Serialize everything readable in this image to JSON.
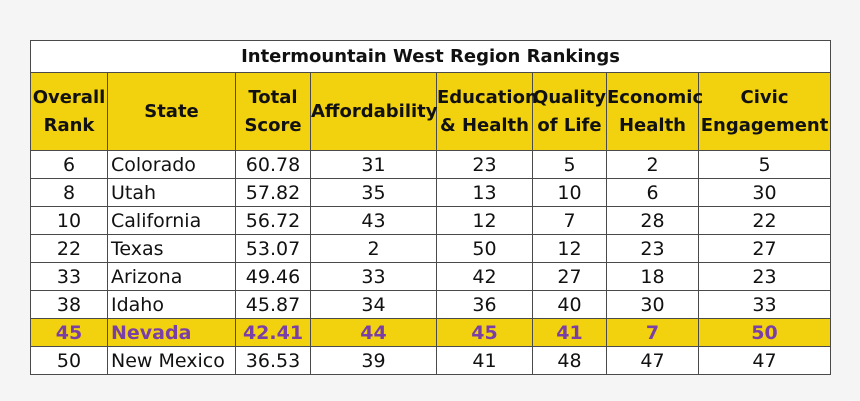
{
  "title": "Intermountain West Region Rankings",
  "headers": [
    [
      "Overall",
      "Rank"
    ],
    [
      "State"
    ],
    [
      "Total",
      "Score"
    ],
    [
      "Affordability"
    ],
    [
      "Education",
      "& Health"
    ],
    [
      "Quality",
      "of Life"
    ],
    [
      "Economic",
      "Health"
    ],
    [
      "Civic",
      "Engagement"
    ]
  ],
  "rows": [
    [
      "6",
      "Colorado",
      "60.78",
      "31",
      "23",
      "5",
      "2",
      "5"
    ],
    [
      "8",
      "Utah",
      "57.82",
      "35",
      "13",
      "10",
      "6",
      "30"
    ],
    [
      "10",
      "California",
      "56.72",
      "43",
      "12",
      "7",
      "28",
      "22"
    ],
    [
      "22",
      "Texas",
      "53.07",
      "2",
      "50",
      "12",
      "23",
      "27"
    ],
    [
      "33",
      "Arizona",
      "49.46",
      "33",
      "42",
      "27",
      "18",
      "23"
    ],
    [
      "38",
      "Idaho",
      "45.87",
      "34",
      "36",
      "40",
      "30",
      "33"
    ],
    [
      "45",
      "Nevada",
      "42.41",
      "44",
      "45",
      "41",
      "7",
      "50"
    ],
    [
      "50",
      "New Mexico",
      "36.53",
      "39",
      "41",
      "48",
      "47",
      "47"
    ]
  ],
  "highlight_row_state": "Nevada",
  "colors": {
    "header_bg": "#f2d20f",
    "highlight_bg": "#f2d20f",
    "highlight_text": "#7a3fa6",
    "border": "#4a4a4a"
  }
}
